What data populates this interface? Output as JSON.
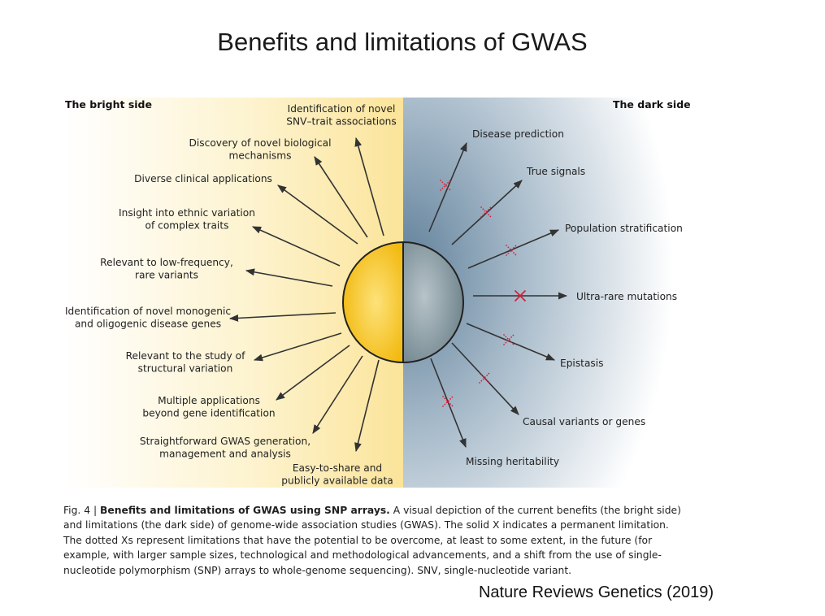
{
  "slide": {
    "title": "Benefits and limitations of GWAS",
    "source": "Nature Reviews Genetics (2019)"
  },
  "colors": {
    "bright_sun": "#f7c21a",
    "dark_globe": "#8d9ea6",
    "arrow": "#333333",
    "cross": "#d6203a",
    "bright_bg": "#fbe9a6",
    "dark_bg": "#6f8fa8"
  },
  "figure": {
    "bright_side": {
      "title": "The bright side",
      "items": [
        {
          "lines": [
            "Identification of novel",
            "SNV–trait associations"
          ]
        },
        {
          "lines": [
            "Discovery of novel biological",
            "mechanisms"
          ]
        },
        {
          "lines": [
            "Diverse clinical applications"
          ]
        },
        {
          "lines": [
            "Insight into ethnic variation",
            "of complex traits"
          ]
        },
        {
          "lines": [
            "Relevant to low-frequency,",
            "rare variants"
          ]
        },
        {
          "lines": [
            "Identification of novel monogenic",
            "and oligogenic disease genes"
          ]
        },
        {
          "lines": [
            "Relevant to the study of",
            "structural variation"
          ]
        },
        {
          "lines": [
            "Multiple applications",
            "beyond gene identification"
          ]
        },
        {
          "lines": [
            "Straightforward GWAS generation,",
            "management and analysis"
          ]
        },
        {
          "lines": [
            "Easy-to-share and",
            "publicly available data"
          ]
        }
      ]
    },
    "dark_side": {
      "title": "The dark side",
      "items": [
        {
          "label": "Disease prediction",
          "cross": "dotted"
        },
        {
          "label": "True signals",
          "cross": "dotted"
        },
        {
          "label": "Population stratification",
          "cross": "dotted"
        },
        {
          "label": "Ultra-rare mutations",
          "cross": "solid"
        },
        {
          "label": "Epistasis",
          "cross": "dotted"
        },
        {
          "label": "Causal variants or genes",
          "cross": "dotted"
        },
        {
          "label": "Missing heritability",
          "cross": "dotted"
        }
      ]
    },
    "caption": {
      "prefix": "Fig. 4 | ",
      "bold": "Benefits and limitations of GWAS using SNP arrays.",
      "text": " A visual depiction of the current benefits (the bright side) and limitations (the dark side) of genome-wide association studies (GWAS). The solid X indicates a permanent limitation. The dotted Xs represent limitations that have the potential to be overcome, at least to some extent, in the future (for example, with larger sample sizes, technological and methodological advancements, and a shift from the use of single-nucleotide polymorphism (SNP) arrays to whole-genome sequencing). SNV, single-nucleotide variant."
    }
  }
}
